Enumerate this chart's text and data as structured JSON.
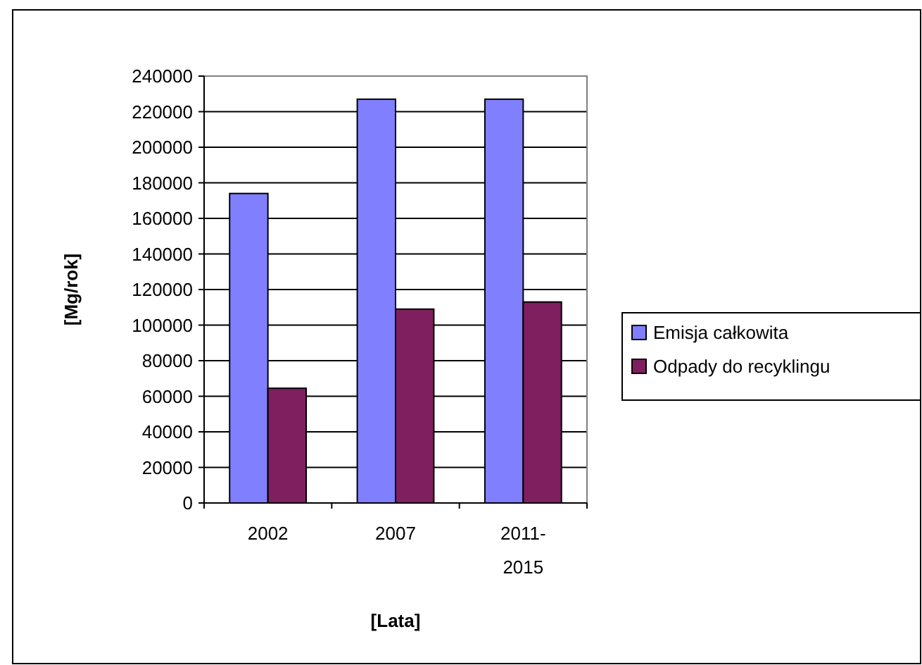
{
  "chart_data": {
    "type": "bar",
    "xlabel": "[Lata]",
    "ylabel": "[Mg/rok]",
    "categories": [
      "2002",
      "2007",
      "2011-2015"
    ],
    "series": [
      {
        "name": "Emisja całkowita",
        "color": "#8080ff",
        "values": [
          174000,
          227000,
          227000
        ]
      },
      {
        "name": "Odpady do recyklingu",
        "color": "#7f1f5f",
        "values": [
          64500,
          109000,
          113000
        ]
      }
    ],
    "ylim": [
      0,
      240000
    ],
    "yticks": [
      0,
      20000,
      40000,
      60000,
      80000,
      100000,
      120000,
      140000,
      160000,
      180000,
      200000,
      220000,
      240000
    ],
    "grid": "y",
    "legend": "right"
  }
}
